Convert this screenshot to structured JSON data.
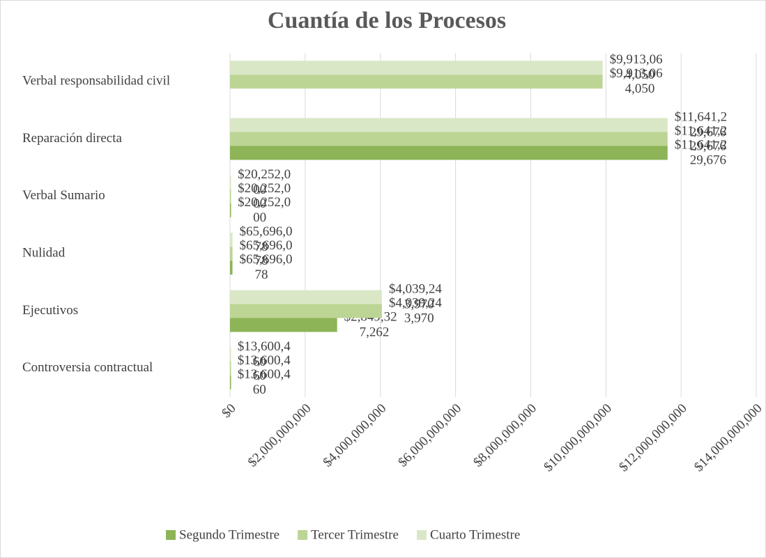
{
  "chart_data": {
    "type": "bar",
    "orientation": "horizontal",
    "title": "Cuantía de los Procesos",
    "categories": [
      "Verbal responsabilidad civil",
      "Reparación directa",
      "Verbal Sumario",
      "Nulidad",
      "Ejecutivos",
      "Controversia contractual"
    ],
    "series": [
      {
        "name": "Segundo Trimestre",
        "color": "#8db456",
        "values": [
          null,
          11641229676,
          20252000,
          65696078,
          2849327262,
          13600460
        ],
        "value_labels": [
          null,
          "$11,641,229,676",
          "$20,252,000",
          "$65,696,078",
          "$2,849,327,262",
          "$13,600,460"
        ]
      },
      {
        "name": "Tercer Trimestre",
        "color": "#bcd595",
        "values": [
          9913064050,
          11641229676,
          20252000,
          65696078,
          4039243970,
          13600460
        ],
        "value_labels": [
          "$9,913,064,050",
          "$11,641,229,676",
          "$20,252,000",
          "$65,696,078",
          "$4,039,243,970",
          "$13,600,460"
        ]
      },
      {
        "name": "Cuarto Trimestre",
        "color": "#dae7c6",
        "values": [
          9913064050,
          11641229676,
          20252000,
          65696078,
          4039243970,
          13600460
        ],
        "value_labels": [
          "$9,913,064,050",
          "$11,641,229,676",
          "$20,252,000",
          "$65,696,078",
          "$4,039,243,970",
          "$13,600,460"
        ]
      }
    ],
    "xlim": [
      0,
      14000000000
    ],
    "xticks": [
      {
        "value": 0,
        "label": "$0"
      },
      {
        "value": 2000000000,
        "label": "$2,000,000,000"
      },
      {
        "value": 4000000000,
        "label": "$4,000,000,000"
      },
      {
        "value": 6000000000,
        "label": "$6,000,000,000"
      },
      {
        "value": 8000000000,
        "label": "$8,000,000,000"
      },
      {
        "value": 10000000000,
        "label": "$10,000,000,000"
      },
      {
        "value": 12000000000,
        "label": "$12,000,000,000"
      },
      {
        "value": 14000000000,
        "label": "$14,000,000,000"
      }
    ],
    "grid": true,
    "legend": "bottom"
  }
}
